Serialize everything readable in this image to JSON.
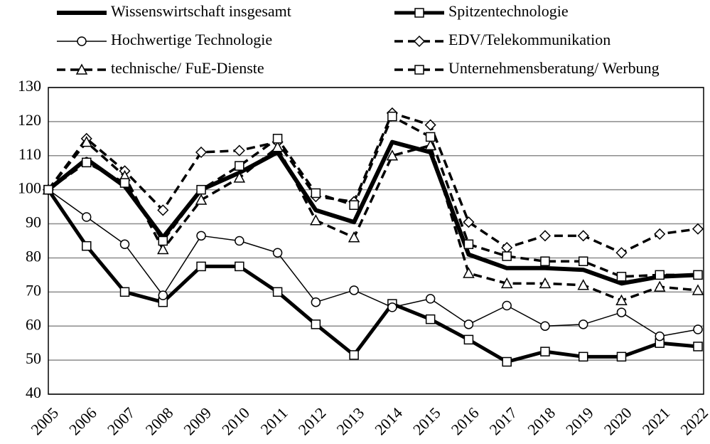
{
  "chart_data": {
    "type": "line",
    "categories": [
      "2005",
      "2006",
      "2007",
      "2008",
      "2009",
      "2010",
      "2011",
      "2012",
      "2013",
      "2014",
      "2015",
      "2016",
      "2017",
      "2018",
      "2019",
      "2020",
      "2021",
      "2022"
    ],
    "series": [
      {
        "name": "Wissenswirtschaft insgesamt",
        "color": "#000000",
        "dash": "solid",
        "marker": "none",
        "linewidth": 6,
        "values": [
          100,
          109,
          101,
          86,
          100,
          105,
          111,
          94,
          90.5,
          114,
          111,
          81,
          77,
          77,
          76.5,
          72.5,
          74.5,
          75
        ]
      },
      {
        "name": "Spitzentechnologie",
        "color": "#000000",
        "dash": "solid",
        "marker": "square",
        "linewidth": 5,
        "values": [
          100,
          83.5,
          70,
          67,
          77.5,
          77.5,
          70,
          60.5,
          51.5,
          66.5,
          62,
          56,
          49.5,
          52.5,
          51,
          51,
          55,
          54
        ]
      },
      {
        "name": "Hochwertige Technologie",
        "color": "#000000",
        "dash": "solid",
        "marker": "circle",
        "linewidth": 1.5,
        "values": [
          100,
          92,
          84,
          69,
          86.5,
          85,
          81.5,
          67,
          70.5,
          65.5,
          68,
          60.5,
          66,
          60,
          60.5,
          64,
          57,
          59
        ]
      },
      {
        "name": "EDV/Telekommunikation",
        "color": "#000000",
        "dash": "dashed",
        "marker": "diamond",
        "linewidth": 3.5,
        "values": [
          100,
          115,
          105.5,
          94,
          111,
          111.5,
          114,
          98,
          96.5,
          122.5,
          119,
          90.5,
          83,
          86.5,
          86.5,
          81.5,
          87,
          88.5
        ]
      },
      {
        "name": "technische/ FuE-Dienste",
        "color": "#000000",
        "dash": "dashed",
        "marker": "triangle",
        "linewidth": 3.5,
        "values": [
          100,
          114,
          104,
          82.5,
          97,
          103.5,
          112.5,
          91,
          86,
          110,
          113,
          75.5,
          72.5,
          72.5,
          72,
          67.5,
          71.5,
          70.5
        ]
      },
      {
        "name": "Unternehmensberatung/ Werbung",
        "color": "#000000",
        "dash": "dashed",
        "marker": "square",
        "linewidth": 3.5,
        "values": [
          100,
          108,
          102,
          85,
          100,
          107,
          115,
          99,
          95.5,
          121.5,
          115.5,
          84,
          80.5,
          79,
          79,
          74.5,
          75,
          75
        ]
      }
    ],
    "ylim": [
      40,
      130
    ],
    "yticks": [
      40,
      50,
      60,
      70,
      80,
      90,
      100,
      110,
      120,
      130
    ],
    "grid": true
  }
}
